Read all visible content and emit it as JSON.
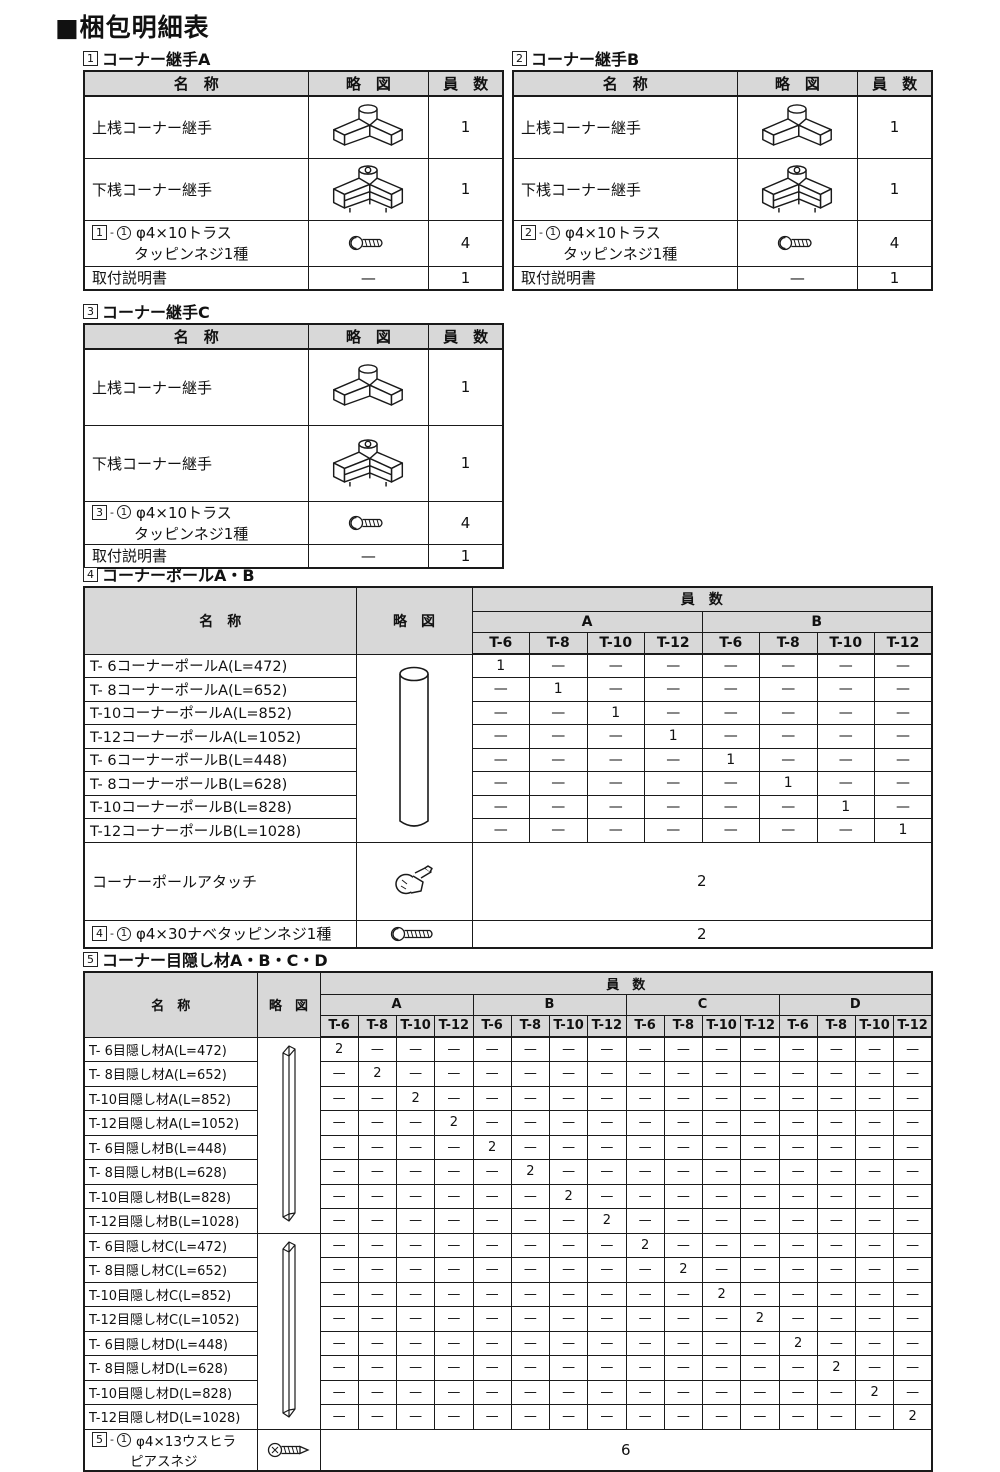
{
  "title": "■梱包明細表",
  "dash": "—",
  "colors": {
    "header_bg": "#d8d8d8",
    "border": "#1a1a1a",
    "text": "#111111"
  },
  "headers": {
    "name": "名　称",
    "sketch": "略　図",
    "qty": "員　数"
  },
  "joint_tables": [
    {
      "num": "1",
      "title": "コーナー継手A",
      "rows": [
        {
          "name": "上桟コーナー継手",
          "sketch_icon": "upper-corner-joint-sketch",
          "qty": "1"
        },
        {
          "name": "下桟コーナー継手",
          "sketch_icon": "lower-corner-joint-sketch",
          "qty": "1"
        },
        {
          "ref_num": "1",
          "ref_sub": "1",
          "name": "φ4×10トラス",
          "name2": "タッピンネジ1種",
          "sketch_icon": "truss-screw-sketch",
          "qty": "4"
        },
        {
          "name": "取付説明書",
          "sketch": "—",
          "qty": "1"
        }
      ]
    },
    {
      "num": "2",
      "title": "コーナー継手B",
      "rows": [
        {
          "name": "上桟コーナー継手",
          "sketch_icon": "upper-corner-joint-sketch",
          "qty": "1"
        },
        {
          "name": "下桟コーナー継手",
          "sketch_icon": "lower-corner-joint-sketch",
          "qty": "1"
        },
        {
          "ref_num": "2",
          "ref_sub": "1",
          "name": "φ4×10トラス",
          "name2": "タッピンネジ1種",
          "sketch_icon": "truss-screw-sketch",
          "qty": "4"
        },
        {
          "name": "取付説明書",
          "sketch": "—",
          "qty": "1"
        }
      ]
    },
    {
      "num": "3",
      "title": "コーナー継手C",
      "rows": [
        {
          "name": "上桟コーナー継手",
          "sketch_icon": "upper-corner-joint-sketch",
          "qty": "1"
        },
        {
          "name": "下桟コーナー継手",
          "sketch_icon": "lower-corner-joint-sketch",
          "qty": "1"
        },
        {
          "ref_num": "3",
          "ref_sub": "1",
          "name": "φ4×10トラス",
          "name2": "タッピンネジ1種",
          "sketch_icon": "truss-screw-sketch",
          "qty": "4"
        },
        {
          "name": "取付説明書",
          "sketch": "—",
          "qty": "1"
        }
      ]
    }
  ],
  "pole_table": {
    "num": "4",
    "title": "コーナーポールA・B",
    "groups": [
      "A",
      "B"
    ],
    "sizes": [
      "T-6",
      "T-8",
      "T-10",
      "T-12"
    ],
    "sketch_icon": "corner-pole-sketch",
    "rows": [
      {
        "name": "T- 6コーナーポールA(L=472)",
        "cells": [
          "1",
          "—",
          "—",
          "—",
          "—",
          "—",
          "—",
          "—"
        ]
      },
      {
        "name": "T- 8コーナーポールA(L=652)",
        "cells": [
          "—",
          "1",
          "—",
          "—",
          "—",
          "—",
          "—",
          "—"
        ]
      },
      {
        "name": "T-10コーナーポールA(L=852)",
        "cells": [
          "—",
          "—",
          "1",
          "—",
          "—",
          "—",
          "—",
          "—"
        ]
      },
      {
        "name": "T-12コーナーポールA(L=1052)",
        "cells": [
          "—",
          "—",
          "—",
          "1",
          "—",
          "—",
          "—",
          "—"
        ]
      },
      {
        "name": "T- 6コーナーポールB(L=448)",
        "cells": [
          "—",
          "—",
          "—",
          "—",
          "1",
          "—",
          "—",
          "—"
        ]
      },
      {
        "name": "T- 8コーナーポールB(L=628)",
        "cells": [
          "—",
          "—",
          "—",
          "—",
          "—",
          "1",
          "—",
          "—"
        ]
      },
      {
        "name": "T-10コーナーポールB(L=828)",
        "cells": [
          "—",
          "—",
          "—",
          "—",
          "—",
          "—",
          "1",
          "—"
        ]
      },
      {
        "name": "T-12コーナーポールB(L=1028)",
        "cells": [
          "—",
          "—",
          "—",
          "—",
          "—",
          "—",
          "—",
          "1"
        ]
      }
    ],
    "attach_row": {
      "name": "コーナーポールアタッチ",
      "sketch_icon": "pole-attach-sketch",
      "qty": "2"
    },
    "screw_row": {
      "ref_num": "4",
      "ref_sub": "1",
      "name": "φ4×30ナベタッピンネジ1種",
      "sketch_icon": "pan-head-screw-sketch",
      "qty": "2"
    }
  },
  "blind_table": {
    "num": "5",
    "title": "コーナー目隠し材A・B・C・D",
    "groups": [
      "A",
      "B",
      "C",
      "D"
    ],
    "sizes": [
      "T-6",
      "T-8",
      "T-10",
      "T-12"
    ],
    "sketch_icon_top": "blind-channel-ab-sketch",
    "sketch_icon_bottom": "blind-channel-cd-sketch",
    "rows": [
      {
        "name": "T- 6目隠し材A(L=472)",
        "cells": [
          "2",
          "—",
          "—",
          "—",
          "—",
          "—",
          "—",
          "—",
          "—",
          "—",
          "—",
          "—",
          "—",
          "—",
          "—",
          "—"
        ]
      },
      {
        "name": "T- 8目隠し材A(L=652)",
        "cells": [
          "—",
          "2",
          "—",
          "—",
          "—",
          "—",
          "—",
          "—",
          "—",
          "—",
          "—",
          "—",
          "—",
          "—",
          "—",
          "—"
        ]
      },
      {
        "name": "T-10目隠し材A(L=852)",
        "cells": [
          "—",
          "—",
          "2",
          "—",
          "—",
          "—",
          "—",
          "—",
          "—",
          "—",
          "—",
          "—",
          "—",
          "—",
          "—",
          "—"
        ]
      },
      {
        "name": "T-12目隠し材A(L=1052)",
        "cells": [
          "—",
          "—",
          "—",
          "2",
          "—",
          "—",
          "—",
          "—",
          "—",
          "—",
          "—",
          "—",
          "—",
          "—",
          "—",
          "—"
        ]
      },
      {
        "name": "T- 6目隠し材B(L=448)",
        "cells": [
          "—",
          "—",
          "—",
          "—",
          "2",
          "—",
          "—",
          "—",
          "—",
          "—",
          "—",
          "—",
          "—",
          "—",
          "—",
          "—"
        ]
      },
      {
        "name": "T- 8目隠し材B(L=628)",
        "cells": [
          "—",
          "—",
          "—",
          "—",
          "—",
          "2",
          "—",
          "—",
          "—",
          "—",
          "—",
          "—",
          "—",
          "—",
          "—",
          "—"
        ]
      },
      {
        "name": "T-10目隠し材B(L=828)",
        "cells": [
          "—",
          "—",
          "—",
          "—",
          "—",
          "—",
          "2",
          "—",
          "—",
          "—",
          "—",
          "—",
          "—",
          "—",
          "—",
          "—"
        ]
      },
      {
        "name": "T-12目隠し材B(L=1028)",
        "cells": [
          "—",
          "—",
          "—",
          "—",
          "—",
          "—",
          "—",
          "2",
          "—",
          "—",
          "—",
          "—",
          "—",
          "—",
          "—",
          "—"
        ]
      },
      {
        "name": "T- 6目隠し材C(L=472)",
        "cells": [
          "—",
          "—",
          "—",
          "—",
          "—",
          "—",
          "—",
          "—",
          "2",
          "—",
          "—",
          "—",
          "—",
          "—",
          "—",
          "—"
        ]
      },
      {
        "name": "T- 8目隠し材C(L=652)",
        "cells": [
          "—",
          "—",
          "—",
          "—",
          "—",
          "—",
          "—",
          "—",
          "—",
          "2",
          "—",
          "—",
          "—",
          "—",
          "—",
          "—"
        ]
      },
      {
        "name": "T-10目隠し材C(L=852)",
        "cells": [
          "—",
          "—",
          "—",
          "—",
          "—",
          "—",
          "—",
          "—",
          "—",
          "—",
          "2",
          "—",
          "—",
          "—",
          "—",
          "—"
        ]
      },
      {
        "name": "T-12目隠し材C(L=1052)",
        "cells": [
          "—",
          "—",
          "—",
          "—",
          "—",
          "—",
          "—",
          "—",
          "—",
          "—",
          "—",
          "2",
          "—",
          "—",
          "—",
          "—"
        ]
      },
      {
        "name": "T- 6目隠し材D(L=448)",
        "cells": [
          "—",
          "—",
          "—",
          "—",
          "—",
          "—",
          "—",
          "—",
          "—",
          "—",
          "—",
          "—",
          "2",
          "—",
          "—",
          "—"
        ]
      },
      {
        "name": "T- 8目隠し材D(L=628)",
        "cells": [
          "—",
          "—",
          "—",
          "—",
          "—",
          "—",
          "—",
          "—",
          "—",
          "—",
          "—",
          "—",
          "—",
          "2",
          "—",
          "—"
        ]
      },
      {
        "name": "T-10目隠し材D(L=828)",
        "cells": [
          "—",
          "—",
          "—",
          "—",
          "—",
          "—",
          "—",
          "—",
          "—",
          "—",
          "—",
          "—",
          "—",
          "—",
          "2",
          "—"
        ]
      },
      {
        "name": "T-12目隠し材D(L=1028)",
        "cells": [
          "—",
          "—",
          "—",
          "—",
          "—",
          "—",
          "—",
          "—",
          "—",
          "—",
          "—",
          "—",
          "—",
          "—",
          "—",
          "2"
        ]
      }
    ],
    "screw_row": {
      "ref_num": "5",
      "ref_sub": "1",
      "name": "φ4×13ウスヒラ",
      "name2": "ピアスネジ",
      "sketch_icon": "piercing-screw-sketch",
      "qty": "6"
    }
  }
}
